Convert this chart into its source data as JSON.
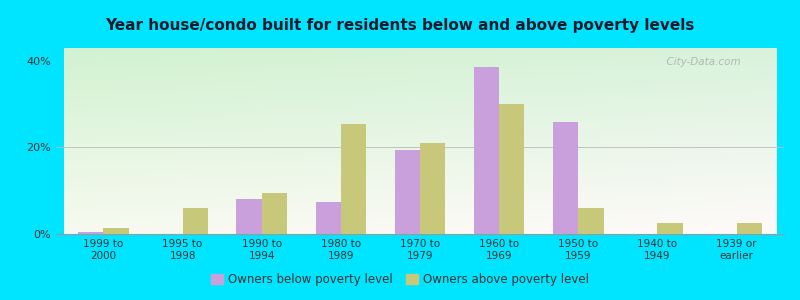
{
  "title": "Year house/condo built for residents below and above poverty levels",
  "categories": [
    "1999 to\n2000",
    "1995 to\n1998",
    "1990 to\n1994",
    "1980 to\n1989",
    "1970 to\n1979",
    "1960 to\n1969",
    "1950 to\n1959",
    "1940 to\n1949",
    "1939 or\nearlier"
  ],
  "below_poverty": [
    0.5,
    0.0,
    8.0,
    7.5,
    19.5,
    38.5,
    26.0,
    0.0,
    0.0
  ],
  "above_poverty": [
    1.5,
    6.0,
    9.5,
    25.5,
    21.0,
    30.0,
    6.0,
    2.5,
    2.5
  ],
  "below_color": "#c9a0dc",
  "above_color": "#c8c87a",
  "ylim": [
    0,
    43
  ],
  "yticks": [
    0,
    20,
    40
  ],
  "ytick_labels": [
    "0%",
    "20%",
    "40%"
  ],
  "outer_bg": "#00e5ff",
  "bar_width": 0.32,
  "legend_below_label": "Owners below poverty level",
  "legend_above_label": "Owners above poverty level",
  "watermark": "  City-Data.com"
}
